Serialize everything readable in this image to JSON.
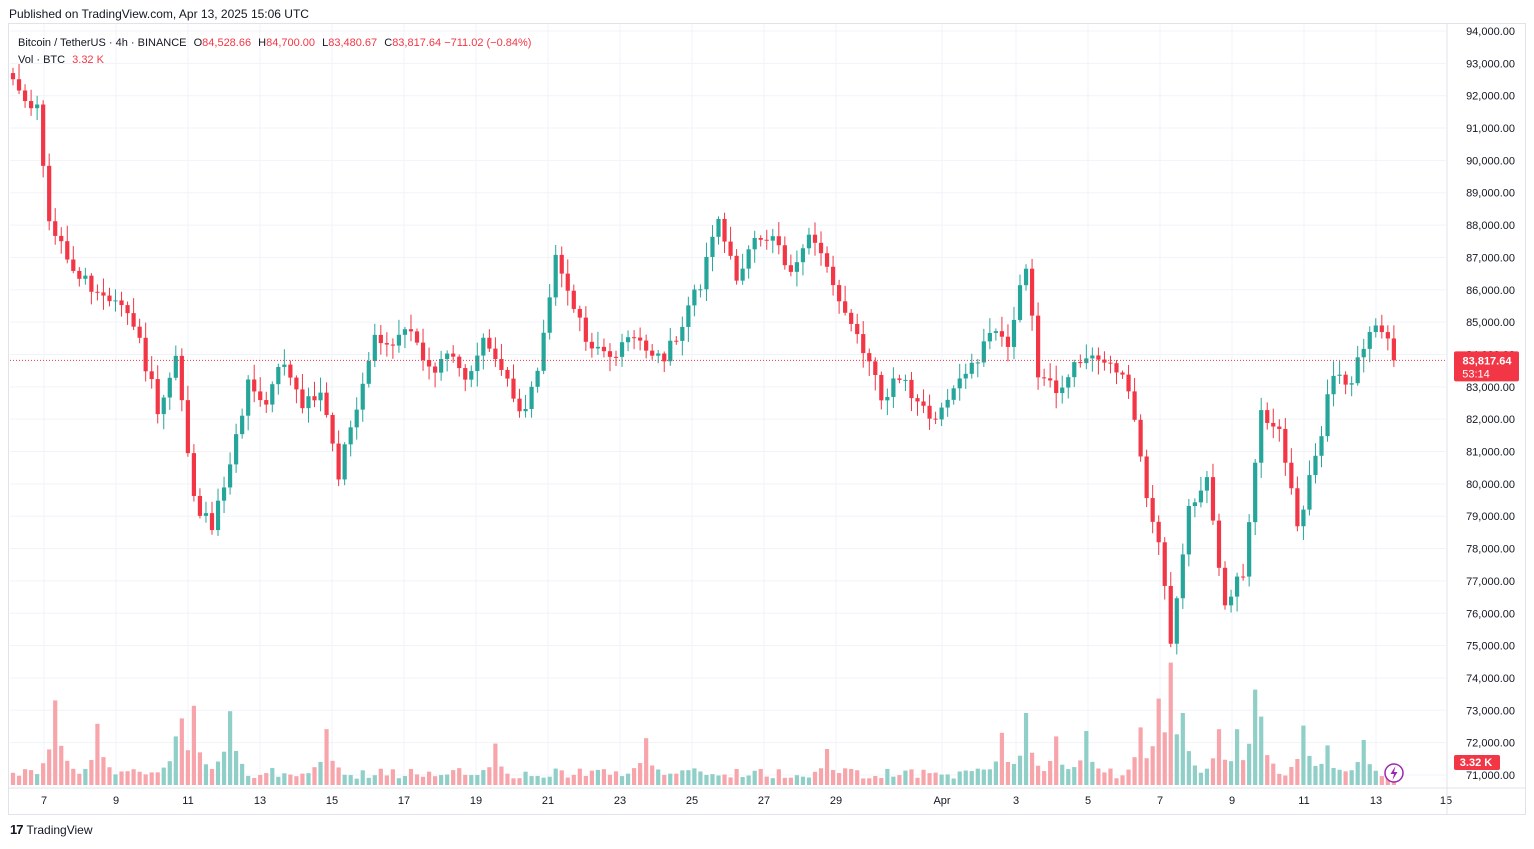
{
  "header": {
    "published": "Published on TradingView.com, Apr 13, 2025 15:06 UTC"
  },
  "legend": {
    "symbol": "Bitcoin / TetherUS · 4h · BINANCE",
    "open_label": "O",
    "open": "84,528.66",
    "high_label": "H",
    "high": "84,700.00",
    "low_label": "L",
    "low": "83,480.67",
    "close_label": "C",
    "close": "83,817.64",
    "change": "−711.02 (−0.84%)",
    "vol_label": "Vol · BTC",
    "vol_value": "3.32 K"
  },
  "footer": {
    "brand": "TradingView",
    "logo_icon": "tradingview-logo-icon"
  },
  "colors": {
    "up": "#26a69a",
    "down": "#f23645",
    "up_vol": "#8fcfc8",
    "down_vol": "#f7a5ab",
    "grid": "#f0f3fa",
    "axis_text": "#131722"
  },
  "chart_data": {
    "type": "candlestick",
    "symbol": "BTCUSDT",
    "timeframe": "4h",
    "price_axis": {
      "min": 71000,
      "max": 94000,
      "ticks": [
        "94,000.00",
        "93,000.00",
        "92,000.00",
        "91,000.00",
        "90,000.00",
        "89,000.00",
        "88,000.00",
        "87,000.00",
        "86,000.00",
        "85,000.00",
        "84,000.00",
        "83,000.00",
        "82,000.00",
        "81,000.00",
        "80,000.00",
        "79,000.00",
        "78,000.00",
        "77,000.00",
        "76,000.00",
        "75,000.00",
        "74,000.00",
        "73,000.00",
        "72,000.00",
        "71,000.00"
      ]
    },
    "time_axis": {
      "labels": [
        "7",
        "9",
        "11",
        "13",
        "15",
        "17",
        "19",
        "21",
        "23",
        "25",
        "27",
        "29",
        "Apr",
        "3",
        "5",
        "7",
        "9",
        "11",
        "13",
        "15"
      ]
    },
    "last_price_label": "83,817.64",
    "countdown_label": "53:14",
    "last_volume_label": "3.32 K",
    "last_price": 83817.64,
    "anchors": [
      [
        0,
        92500
      ],
      [
        4,
        91500
      ],
      [
        6,
        88000
      ],
      [
        8,
        87300
      ],
      [
        10,
        86600
      ],
      [
        13,
        86100
      ],
      [
        18,
        85700
      ],
      [
        21,
        84300
      ],
      [
        24,
        82400
      ],
      [
        27,
        83800
      ],
      [
        30,
        79500
      ],
      [
        33,
        78700
      ],
      [
        36,
        80500
      ],
      [
        39,
        83200
      ],
      [
        42,
        82600
      ],
      [
        45,
        83900
      ],
      [
        48,
        82300
      ],
      [
        51,
        83000
      ],
      [
        54,
        80300
      ],
      [
        57,
        82500
      ],
      [
        60,
        84700
      ],
      [
        63,
        84400
      ],
      [
        66,
        84800
      ],
      [
        69,
        83400
      ],
      [
        72,
        84000
      ],
      [
        75,
        83200
      ],
      [
        78,
        84600
      ],
      [
        81,
        83600
      ],
      [
        84,
        82000
      ],
      [
        87,
        83400
      ],
      [
        90,
        86900
      ],
      [
        93,
        85200
      ],
      [
        96,
        84300
      ],
      [
        99,
        84000
      ],
      [
        102,
        84500
      ],
      [
        105,
        84200
      ],
      [
        108,
        84000
      ],
      [
        111,
        85000
      ],
      [
        114,
        86200
      ],
      [
        117,
        88300
      ],
      [
        120,
        86500
      ],
      [
        123,
        87400
      ],
      [
        126,
        87800
      ],
      [
        129,
        86600
      ],
      [
        132,
        87500
      ],
      [
        135,
        86900
      ],
      [
        138,
        85300
      ],
      [
        141,
        84100
      ],
      [
        144,
        82700
      ],
      [
        147,
        83200
      ],
      [
        150,
        82500
      ],
      [
        153,
        81800
      ],
      [
        156,
        82800
      ],
      [
        159,
        83600
      ],
      [
        162,
        84800
      ],
      [
        165,
        84200
      ],
      [
        168,
        86800
      ],
      [
        170,
        83400
      ],
      [
        173,
        82900
      ],
      [
        176,
        83800
      ],
      [
        179,
        84200
      ],
      [
        182,
        83700
      ],
      [
        185,
        82900
      ],
      [
        188,
        79800
      ],
      [
        190,
        78200
      ],
      [
        192,
        75200
      ],
      [
        195,
        79400
      ],
      [
        198,
        80000
      ],
      [
        201,
        76300
      ],
      [
        204,
        77300
      ],
      [
        207,
        82200
      ],
      [
        210,
        81800
      ],
      [
        213,
        78700
      ],
      [
        216,
        80800
      ],
      [
        219,
        83500
      ],
      [
        222,
        83100
      ],
      [
        225,
        84900
      ],
      [
        228,
        84600
      ],
      [
        229,
        83820
      ]
    ],
    "volume_peaks": [
      [
        7,
        4.7
      ],
      [
        14,
        3.4
      ],
      [
        27,
        2.7
      ],
      [
        28,
        3.7
      ],
      [
        30,
        4.4
      ],
      [
        36,
        4.1
      ],
      [
        52,
        3.1
      ],
      [
        80,
        2.3
      ],
      [
        105,
        2.6
      ],
      [
        135,
        2.0
      ],
      [
        164,
        2.9
      ],
      [
        168,
        4.0
      ],
      [
        173,
        2.7
      ],
      [
        178,
        3.0
      ],
      [
        187,
        3.2
      ],
      [
        190,
        4.8
      ],
      [
        192,
        6.8
      ],
      [
        194,
        4.0
      ],
      [
        200,
        3.1
      ],
      [
        203,
        3.1
      ],
      [
        206,
        5.3
      ],
      [
        207,
        3.8
      ],
      [
        214,
        3.3
      ],
      [
        218,
        2.2
      ],
      [
        224,
        2.5
      ]
    ]
  }
}
